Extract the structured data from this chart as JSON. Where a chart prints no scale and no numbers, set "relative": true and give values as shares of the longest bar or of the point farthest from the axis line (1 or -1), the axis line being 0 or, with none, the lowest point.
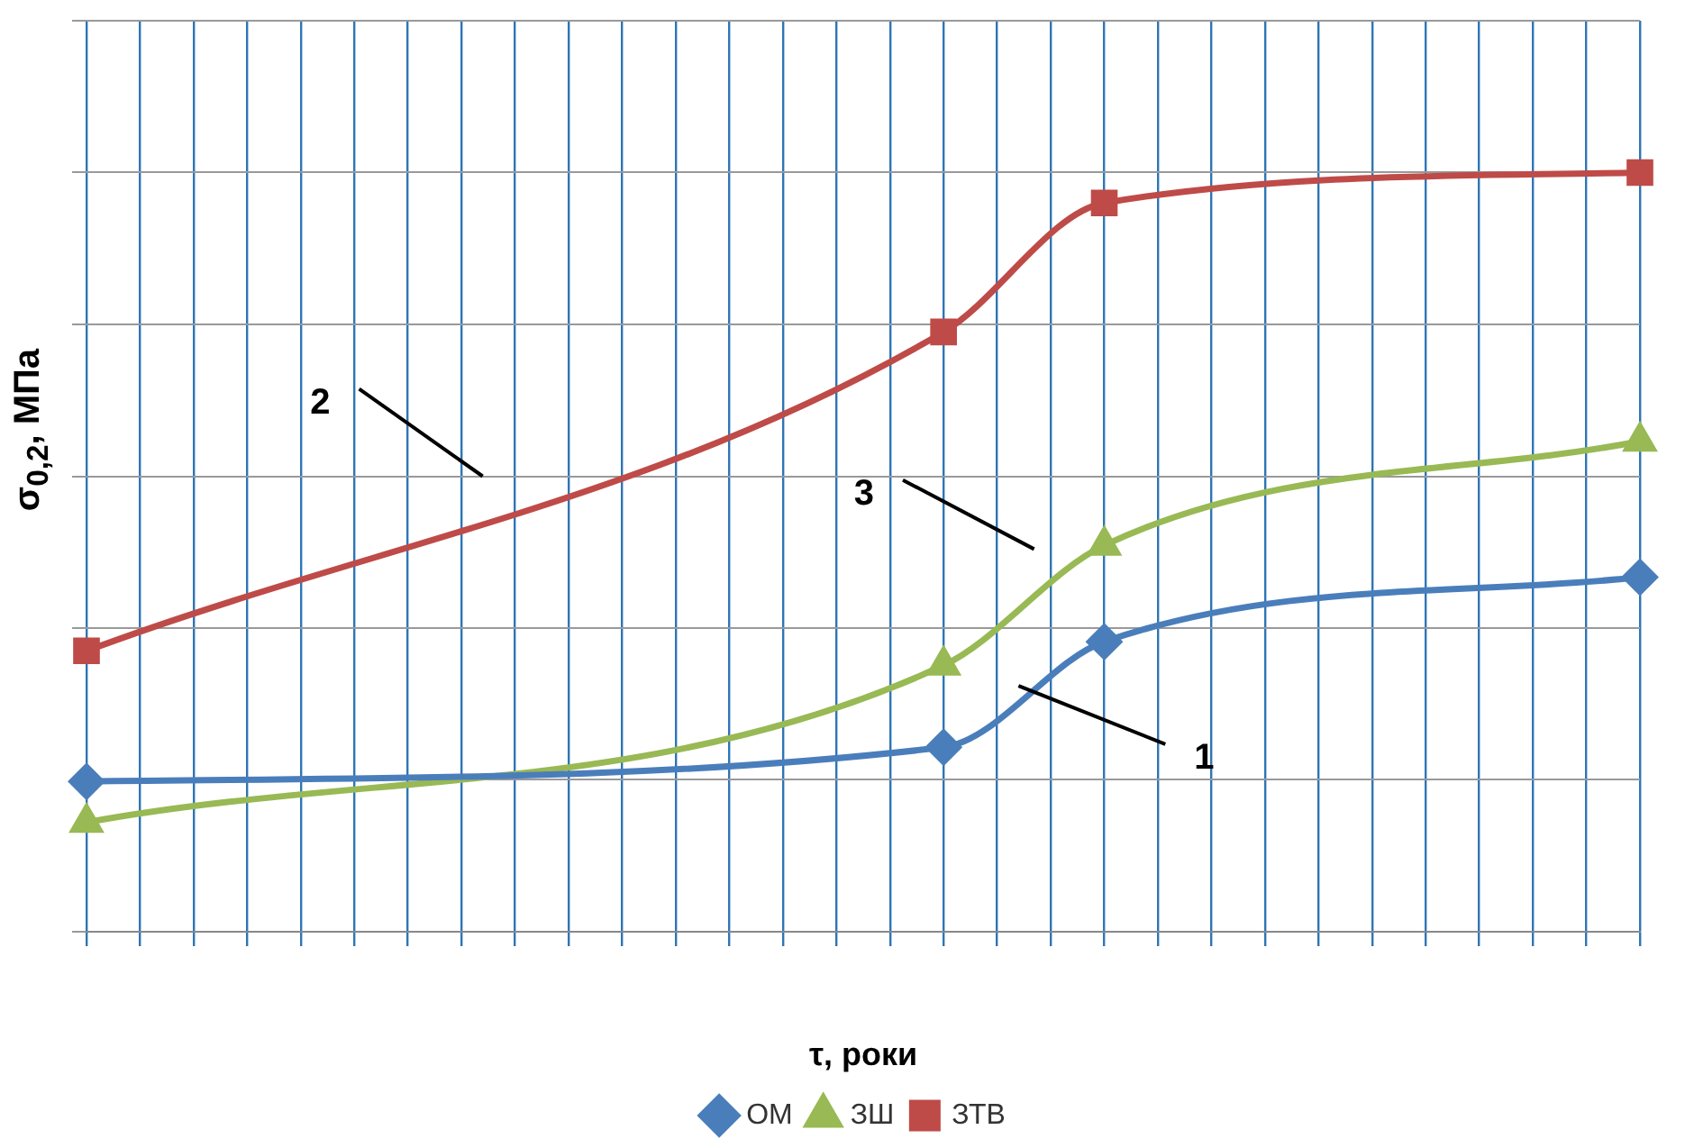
{
  "chart_data": {
    "type": "line",
    "relative": true,
    "xlabel": "τ, роки",
    "ylabel": "σ$_{0,2}$, МПа",
    "categories": [
      null,
      null,
      null,
      null,
      null,
      null,
      null,
      null,
      null,
      null,
      null,
      null,
      null,
      null,
      null,
      null,
      null,
      null,
      null,
      null,
      null,
      null,
      null,
      null,
      null,
      null,
      null,
      null,
      null,
      null
    ],
    "series": [
      {
        "name": "ОМ",
        "color": "#4a7ebb",
        "marker": "diamond",
        "values": [
          0.198,
          null,
          null,
          null,
          null,
          null,
          null,
          null,
          null,
          null,
          null,
          null,
          null,
          null,
          null,
          null,
          0.243,
          null,
          null,
          0.382,
          null,
          null,
          null,
          null,
          null,
          null,
          null,
          null,
          null,
          0.467
        ]
      },
      {
        "name": "ЗШ",
        "color": "#98b954",
        "marker": "triangle",
        "values": [
          0.144,
          null,
          null,
          null,
          null,
          null,
          null,
          null,
          null,
          null,
          null,
          null,
          null,
          null,
          null,
          null,
          0.351,
          null,
          null,
          0.509,
          null,
          null,
          null,
          null,
          null,
          null,
          null,
          null,
          null,
          0.646
        ]
      },
      {
        "name": "ЗТВ",
        "color": "#be4b48",
        "marker": "square",
        "values": [
          0.37,
          null,
          null,
          null,
          null,
          null,
          null,
          null,
          null,
          null,
          null,
          null,
          null,
          null,
          null,
          null,
          0.79,
          null,
          null,
          0.96,
          null,
          null,
          null,
          null,
          null,
          null,
          null,
          null,
          null,
          1
        ]
      }
    ],
    "annotations": [
      "1",
      "3",
      "2"
    ],
    "grid": true,
    "legend": "bottom"
  }
}
